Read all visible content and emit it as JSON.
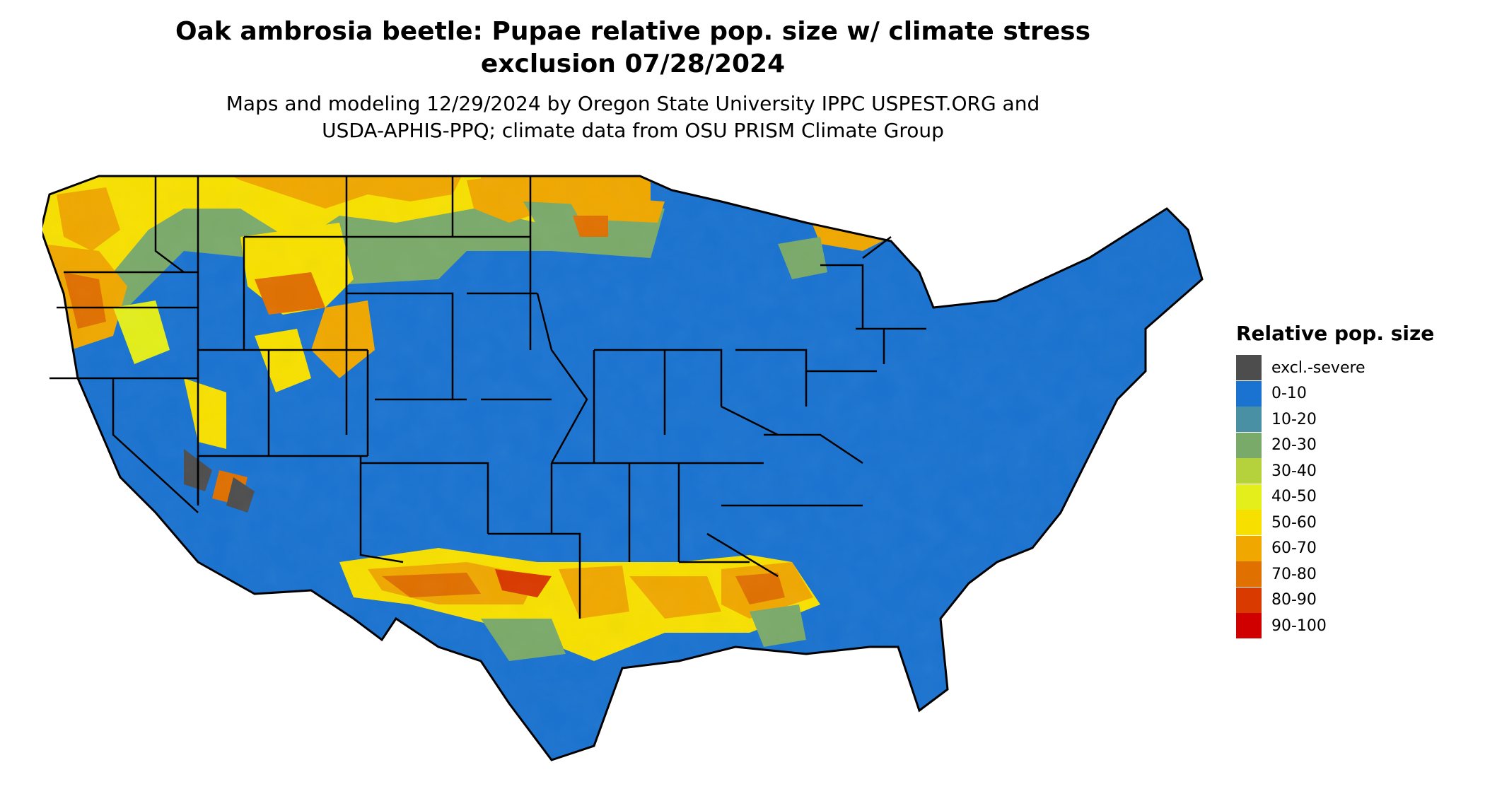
{
  "title_line1": "Oak ambrosia beetle: Pupae relative pop. size w/ climate stress",
  "title_line2": "exclusion 07/28/2024",
  "subtitle_line1": "Maps and modeling 12/29/2024 by Oregon State University IPPC USPEST.ORG and",
  "subtitle_line2": "USDA-APHIS-PPQ; climate data from OSU PRISM Climate Group",
  "legend": {
    "title": "Relative pop. size",
    "items": [
      {
        "label": "excl.-severe",
        "color": "#4d4d4d"
      },
      {
        "label": "0-10",
        "color": "#1a73d0"
      },
      {
        "label": "10-20",
        "color": "#4a90a4"
      },
      {
        "label": "20-30",
        "color": "#7aaa6a"
      },
      {
        "label": "30-40",
        "color": "#b5d23c"
      },
      {
        "label": "40-50",
        "color": "#e3ee1a"
      },
      {
        "label": "50-60",
        "color": "#f7e000"
      },
      {
        "label": "60-70",
        "color": "#f0a800"
      },
      {
        "label": "70-80",
        "color": "#e07000"
      },
      {
        "label": "80-90",
        "color": "#d83a00"
      },
      {
        "label": "90-100",
        "color": "#d00000"
      }
    ]
  }
}
